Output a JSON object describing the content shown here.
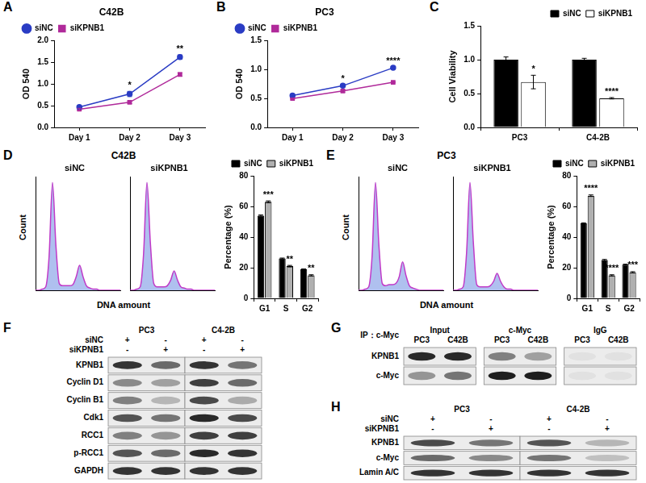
{
  "chart_data": [
    {
      "panel_label": "A",
      "type": "line",
      "title": "C42B",
      "y_label": "OD 540",
      "categories": [
        "Day 1",
        "Day 2",
        "Day 3"
      ],
      "series": [
        {
          "name": "siNC",
          "color": "#2a3cc4",
          "marker": "circle",
          "values": [
            0.47,
            0.77,
            1.62
          ],
          "errors": [
            0.02,
            0.06,
            0.05
          ]
        },
        {
          "name": "siKPNB1",
          "color": "#b02a9a",
          "marker": "square",
          "values": [
            0.42,
            0.58,
            1.22
          ],
          "errors": [
            0.02,
            0.03,
            0.04
          ]
        }
      ],
      "significance": [
        null,
        "*",
        "**"
      ],
      "ylim": [
        0,
        2
      ],
      "yticks": [
        {
          "value": 0,
          "label": "0.0"
        },
        {
          "value": 0.5,
          "label": "0.5"
        },
        {
          "value": 1,
          "label": "1.0"
        },
        {
          "value": 1.5,
          "label": "1.5"
        },
        {
          "value": 2,
          "label": "2.0"
        }
      ],
      "grid": false,
      "legend": "upper left"
    },
    {
      "panel_label": "B",
      "type": "line",
      "title": "PC3",
      "y_label": "OD 540",
      "categories": [
        "Day 1",
        "Day 2",
        "Day 3"
      ],
      "series": [
        {
          "name": "siNC",
          "color": "#2a3cc4",
          "marker": "circle",
          "values": [
            0.55,
            0.72,
            1.03
          ],
          "errors": [
            0.01,
            0.01,
            0.01
          ]
        },
        {
          "name": "siKPNB1",
          "color": "#b02a9a",
          "marker": "square",
          "values": [
            0.5,
            0.63,
            0.78
          ],
          "errors": [
            0.01,
            0.02,
            0.01
          ]
        }
      ],
      "significance": [
        null,
        "*",
        "****"
      ],
      "ylim": [
        0,
        1.5
      ],
      "yticks": [
        {
          "value": 0,
          "label": "0.0"
        },
        {
          "value": 0.5,
          "label": "0.5"
        },
        {
          "value": 1,
          "label": "1.0"
        },
        {
          "value": 1.5,
          "label": "1.5"
        }
      ],
      "grid": false,
      "legend": "upper left"
    },
    {
      "panel_label": "C",
      "type": "bar",
      "y_label": "Cell Viability",
      "categories": [
        "PC3",
        "C4-2B"
      ],
      "series": [
        {
          "name": "siNC",
          "color": "#000000",
          "values": [
            1.0,
            1.0
          ],
          "errors": [
            0.04,
            0.02
          ]
        },
        {
          "name": "siKPNB1",
          "color": "#ffffff",
          "values": [
            0.67,
            0.43
          ],
          "errors": [
            0.1,
            0.01
          ]
        }
      ],
      "significance": [
        "*",
        "****"
      ],
      "ylim": [
        0,
        1.5
      ],
      "yticks": [
        {
          "value": 0,
          "label": "0.0"
        },
        {
          "value": 0.5,
          "label": "0.5"
        },
        {
          "value": 1,
          "label": "1.0"
        },
        {
          "value": 1.5,
          "label": "1.5"
        }
      ],
      "grid": false,
      "legend": "upper right"
    },
    {
      "panel_label": "D",
      "type": "area",
      "title": "C42B",
      "x_label": "DNA amount",
      "y_label": "Count",
      "color": "#c03ac8",
      "tick_labels": false,
      "grid": false,
      "xlim": [
        0,
        100
      ],
      "ylim": [
        0,
        100
      ],
      "subplots": [
        {
          "title": "siNC",
          "x": [
            0,
            4,
            8,
            12,
            16,
            20,
            24,
            28,
            32,
            36,
            40,
            44,
            48,
            52,
            56,
            60,
            64,
            68,
            72,
            76,
            80,
            84,
            88,
            92,
            96,
            100
          ],
          "values": [
            0,
            0,
            1,
            3,
            30,
            95,
            40,
            6,
            4,
            4,
            4,
            5,
            12,
            22,
            12,
            4,
            2,
            1,
            1,
            0,
            0,
            0,
            0,
            0,
            0,
            0
          ]
        },
        {
          "title": "siKPNB1",
          "x": [
            0,
            4,
            8,
            12,
            16,
            20,
            24,
            28,
            32,
            36,
            40,
            44,
            48,
            52,
            56,
            60,
            64,
            68,
            72,
            76,
            80,
            84,
            88,
            92,
            96,
            100
          ],
          "values": [
            0,
            0,
            1,
            3,
            32,
            95,
            42,
            6,
            3,
            3,
            3,
            4,
            9,
            17,
            9,
            3,
            2,
            1,
            1,
            0,
            0,
            0,
            0,
            0,
            0,
            0
          ]
        }
      ]
    },
    {
      "type": "bar",
      "y_label": "Percentage (%)",
      "categories": [
        "G1",
        "S",
        "G2"
      ],
      "series": [
        {
          "name": "siNC",
          "color": "#000000",
          "values": [
            54,
            26,
            19
          ],
          "errors": [
            0.4,
            0.3,
            0.2
          ]
        },
        {
          "name": "siKPNB1",
          "color": "#b0b0b0",
          "values": [
            63,
            21,
            15
          ],
          "errors": [
            0.6,
            0.5,
            0.4
          ]
        }
      ],
      "significance": [
        "***",
        "**",
        "**"
      ],
      "ylim": [
        0,
        80
      ],
      "yticks": [
        0,
        20,
        40,
        60,
        80
      ],
      "grid": false,
      "legend": "upper right"
    },
    {
      "panel_label": "E",
      "type": "area",
      "title": "PC3",
      "x_label": "DNA amount",
      "y_label": "Count",
      "color": "#c03ac8",
      "tick_labels": false,
      "grid": false,
      "xlim": [
        0,
        100
      ],
      "ylim": [
        0,
        100
      ],
      "subplots": [
        {
          "title": "siNC",
          "x": [
            0,
            4,
            8,
            12,
            16,
            20,
            24,
            28,
            32,
            36,
            40,
            44,
            48,
            52,
            56,
            60,
            64,
            68,
            72,
            76,
            80,
            84,
            88,
            92,
            96,
            100
          ],
          "values": [
            0,
            0,
            1,
            3,
            30,
            95,
            40,
            6,
            4,
            5,
            5,
            6,
            12,
            25,
            13,
            4,
            2,
            1,
            0,
            0,
            0,
            0,
            0,
            0,
            0,
            0
          ]
        },
        {
          "title": "siKPNB1",
          "x": [
            0,
            4,
            8,
            12,
            16,
            20,
            24,
            28,
            32,
            36,
            40,
            44,
            48,
            52,
            56,
            60,
            64,
            68,
            72,
            76,
            80,
            84,
            88,
            92,
            96,
            100
          ],
          "values": [
            0,
            0,
            1,
            3,
            33,
            95,
            42,
            5,
            3,
            3,
            3,
            4,
            8,
            15,
            8,
            3,
            1,
            1,
            0,
            0,
            0,
            0,
            0,
            0,
            0,
            0
          ]
        }
      ]
    },
    {
      "type": "bar",
      "y_label": "Percentage (%)",
      "categories": [
        "G1",
        "S",
        "G2"
      ],
      "series": [
        {
          "name": "siNC",
          "color": "#000000",
          "values": [
            49,
            25,
            22
          ],
          "errors": [
            0.3,
            0.4,
            0.3
          ]
        },
        {
          "name": "siKPNB1",
          "color": "#b0b0b0",
          "values": [
            67,
            15,
            17
          ],
          "errors": [
            0.5,
            0.4,
            0.4
          ]
        }
      ],
      "significance": [
        "****",
        "****",
        "***"
      ],
      "ylim": [
        0,
        80
      ],
      "yticks": [
        0,
        20,
        40,
        60,
        80
      ],
      "grid": false,
      "legend": "upper right"
    }
  ],
  "blots": [
    {
      "panel_label": "F",
      "group_labels": [
        "PC3",
        "C4-2B"
      ],
      "conditions": [
        {
          "label": "siNC",
          "marks": [
            "+",
            "-",
            "+",
            "-"
          ]
        },
        {
          "label": "siKPNB1",
          "marks": [
            "-",
            "+",
            "-",
            "+"
          ]
        }
      ],
      "rows": [
        {
          "label": "KPNB1",
          "bands": [
            0.85,
            0.6,
            0.85,
            0.55
          ]
        },
        {
          "label": "Cyclin D1",
          "bands": [
            0.45,
            0.35,
            0.8,
            0.6
          ]
        },
        {
          "label": "Cyclin B1",
          "bands": [
            0.5,
            0.25,
            0.75,
            0.3
          ]
        },
        {
          "label": "Cdk1",
          "bands": [
            0.7,
            0.55,
            0.9,
            0.75
          ]
        },
        {
          "label": "RCC1",
          "bands": [
            0.5,
            0.4,
            0.8,
            0.8
          ]
        },
        {
          "label": "p-RCC1",
          "bands": [
            0.7,
            0.6,
            0.9,
            0.85
          ]
        },
        {
          "label": "GAPDH",
          "bands": [
            0.85,
            0.85,
            0.85,
            0.85
          ]
        }
      ]
    },
    {
      "panel_label": "G",
      "row_label": "IP：c-Myc",
      "group_labels": [
        "Input",
        "c-Myc",
        "IgG"
      ],
      "lane_labels": [
        "PC3",
        "C42B",
        "PC3",
        "C42B",
        "PC3",
        "C42B"
      ],
      "rows": [
        {
          "label": "KPNB1",
          "bands": [
            0.9,
            0.9,
            0.5,
            0.35,
            0.05,
            0.05
          ]
        },
        {
          "label": "c-Myc",
          "bands": [
            0.4,
            0.55,
            0.95,
            0.95,
            0.05,
            0.05
          ]
        }
      ]
    },
    {
      "panel_label": "H",
      "group_labels": [
        "PC3",
        "C4-2B"
      ],
      "conditions": [
        {
          "label": "siNC",
          "marks": [
            "+",
            "-",
            "+",
            "-"
          ]
        },
        {
          "label": "siKPNB1",
          "marks": [
            "-",
            "+",
            "-",
            "+"
          ]
        }
      ],
      "rows": [
        {
          "label": "KPNB1",
          "bands": [
            0.75,
            0.55,
            0.7,
            0.25
          ]
        },
        {
          "label": "c-Myc",
          "bands": [
            0.6,
            0.45,
            0.55,
            0.2
          ]
        },
        {
          "label": "Lamin A/C",
          "bands": [
            0.85,
            0.85,
            0.85,
            0.85
          ]
        }
      ]
    }
  ]
}
